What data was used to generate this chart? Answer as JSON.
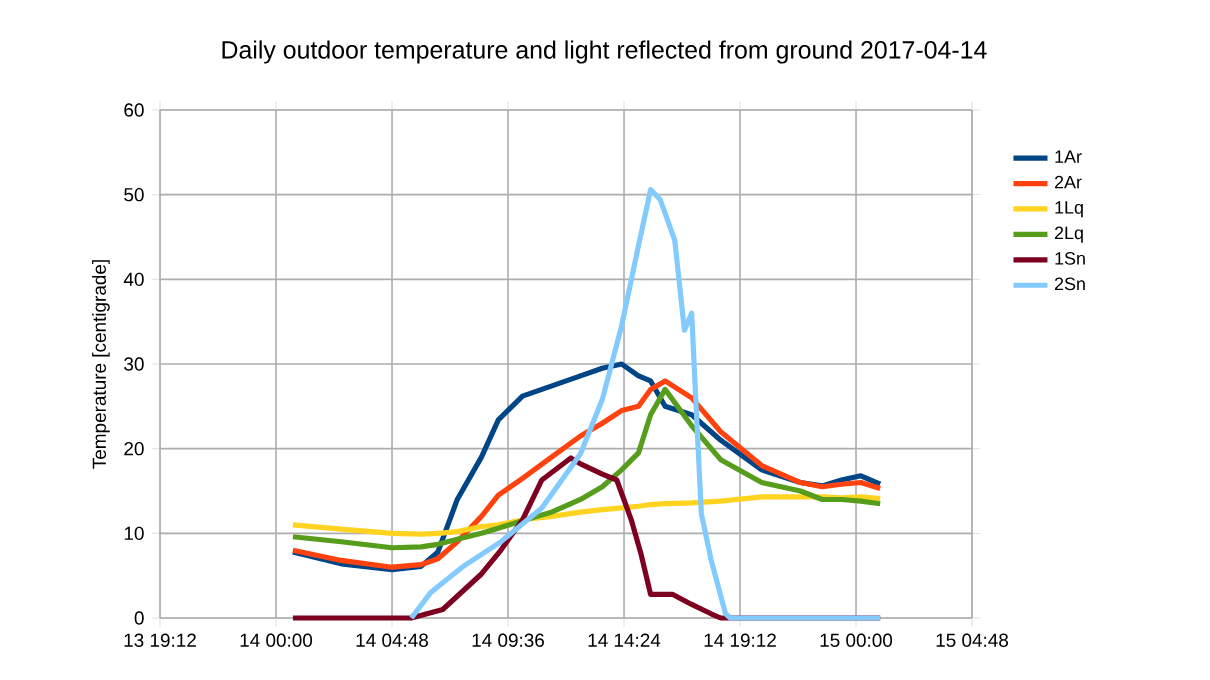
{
  "chart_data": {
    "type": "line",
    "title": "Daily outdoor temperature and light reflected from ground 2017-04-14",
    "ylabel": "Temperature [centigrade]",
    "x": [
      "2017-04-14T00:42",
      "2017-04-14T02:42",
      "2017-04-14T04:48",
      "2017-04-14T06:00",
      "2017-04-14T06:42",
      "2017-04-14T07:30",
      "2017-04-14T08:30",
      "2017-04-14T09:12",
      "2017-04-14T10:12",
      "2017-04-14T11:24",
      "2017-04-14T12:36",
      "2017-04-14T13:30",
      "2017-04-14T14:18",
      "2017-04-14T15:00",
      "2017-04-14T15:30",
      "2017-04-14T16:06",
      "2017-04-14T17:12",
      "2017-04-14T18:24",
      "2017-04-14T20:06",
      "2017-04-14T21:42",
      "2017-04-14T22:36",
      "2017-04-14T23:24",
      "2017-04-15T00:12",
      "2017-04-15T01:00"
    ],
    "series": [
      {
        "name": "1Ar",
        "color": "#004586",
        "values": [
          7.8,
          6.4,
          5.7,
          6.1,
          7.8,
          14,
          19,
          23.4,
          26.2,
          27.4,
          28.6,
          29.5,
          30,
          28.6,
          28,
          25,
          24,
          21,
          17.5,
          16,
          15.6,
          16.3,
          16.8,
          15.8
        ]
      },
      {
        "name": "2Ar",
        "color": "#ff420e",
        "values": [
          8.0,
          6.8,
          6.0,
          6.3,
          7.0,
          9,
          12,
          14.5,
          16.5,
          19,
          21.5,
          23,
          24.5,
          25,
          27,
          28,
          26,
          22,
          18,
          16,
          15.5,
          15.8,
          16,
          15.3
        ]
      },
      {
        "name": "1Lq",
        "color": "#ffd320",
        "values": [
          11,
          10.5,
          10,
          9.9,
          10,
          10.2,
          10.8,
          11,
          11.6,
          12,
          12.5,
          12.8,
          13,
          13.2,
          13.4,
          13.5,
          13.6,
          13.8,
          14.3,
          14.3,
          14.3,
          14.2,
          14.3,
          14.1
        ]
      },
      {
        "name": "2Lq",
        "color": "#579d1c",
        "values": [
          9.6,
          9,
          8.3,
          8.4,
          8.7,
          9.3,
          10,
          10.6,
          11.5,
          12.5,
          14,
          15.5,
          17.5,
          19.5,
          24,
          27,
          22.7,
          18.7,
          16,
          15,
          14,
          14,
          13.8,
          13.5
        ]
      },
      {
        "name": "1Sn",
        "color": "#7e0021",
        "x": [
          "2017-04-14T00:42",
          "2017-04-14T04:48",
          "2017-04-14T05:36",
          "2017-04-14T06:54",
          "2017-04-14T08:30",
          "2017-04-14T09:18",
          "2017-04-14T10:12",
          "2017-04-14T11:00",
          "2017-04-14T12:12",
          "2017-04-14T12:36",
          "2017-04-14T13:30",
          "2017-04-14T14:06",
          "2017-04-14T14:42",
          "2017-04-14T15:06",
          "2017-04-14T15:30",
          "2017-04-14T16:24",
          "2017-04-14T17:12",
          "2017-04-14T18:00",
          "2017-04-14T18:24",
          "2017-04-15T01:00"
        ],
        "values": [
          0,
          0,
          0,
          1,
          5.2,
          8,
          11.6,
          16.3,
          18.9,
          18.2,
          17,
          16.3,
          11.6,
          7.6,
          2.8,
          2.8,
          1.6,
          0.5,
          0,
          0
        ]
      },
      {
        "name": "2Sn",
        "color": "#83caff",
        "x": [
          "2017-04-14T05:36",
          "2017-04-14T06:24",
          "2017-04-14T07:42",
          "2017-04-14T09:18",
          "2017-04-14T11:00",
          "2017-04-14T12:36",
          "2017-04-14T13:30",
          "2017-04-14T14:18",
          "2017-04-14T15:00",
          "2017-04-14T15:30",
          "2017-04-14T15:54",
          "2017-04-14T16:30",
          "2017-04-14T16:54",
          "2017-04-14T17:12",
          "2017-04-14T17:24",
          "2017-04-14T17:36",
          "2017-04-14T18:00",
          "2017-04-14T18:36",
          "2017-04-14T18:48",
          "2017-04-15T01:00"
        ],
        "values": [
          0,
          3,
          6,
          9,
          13,
          19.4,
          25.8,
          34.5,
          44,
          50.6,
          49.4,
          44.6,
          34,
          36,
          24,
          12.3,
          6.9,
          0.5,
          0,
          0
        ]
      }
    ],
    "xlim": [
      "2017-04-13T19:12",
      "2017-04-15T04:48"
    ],
    "xticks": [
      {
        "value": "2017-04-13T19:12",
        "label": "13 19:12"
      },
      {
        "value": "2017-04-14T00:00",
        "label": "14 00:00"
      },
      {
        "value": "2017-04-14T04:48",
        "label": "14 04:48"
      },
      {
        "value": "2017-04-14T09:36",
        "label": "14 09:36"
      },
      {
        "value": "2017-04-14T14:24",
        "label": "14 14:24"
      },
      {
        "value": "2017-04-14T19:12",
        "label": "14 19:12"
      },
      {
        "value": "2017-04-15T00:00",
        "label": "15 00:00"
      },
      {
        "value": "2017-04-15T04:48",
        "label": "15 04:48"
      }
    ],
    "ylim": [
      0,
      60
    ],
    "yticks": [
      0,
      10,
      20,
      30,
      40,
      50,
      60
    ],
    "grid": true,
    "legend": "right",
    "marker": "none",
    "line_style": "solid"
  }
}
